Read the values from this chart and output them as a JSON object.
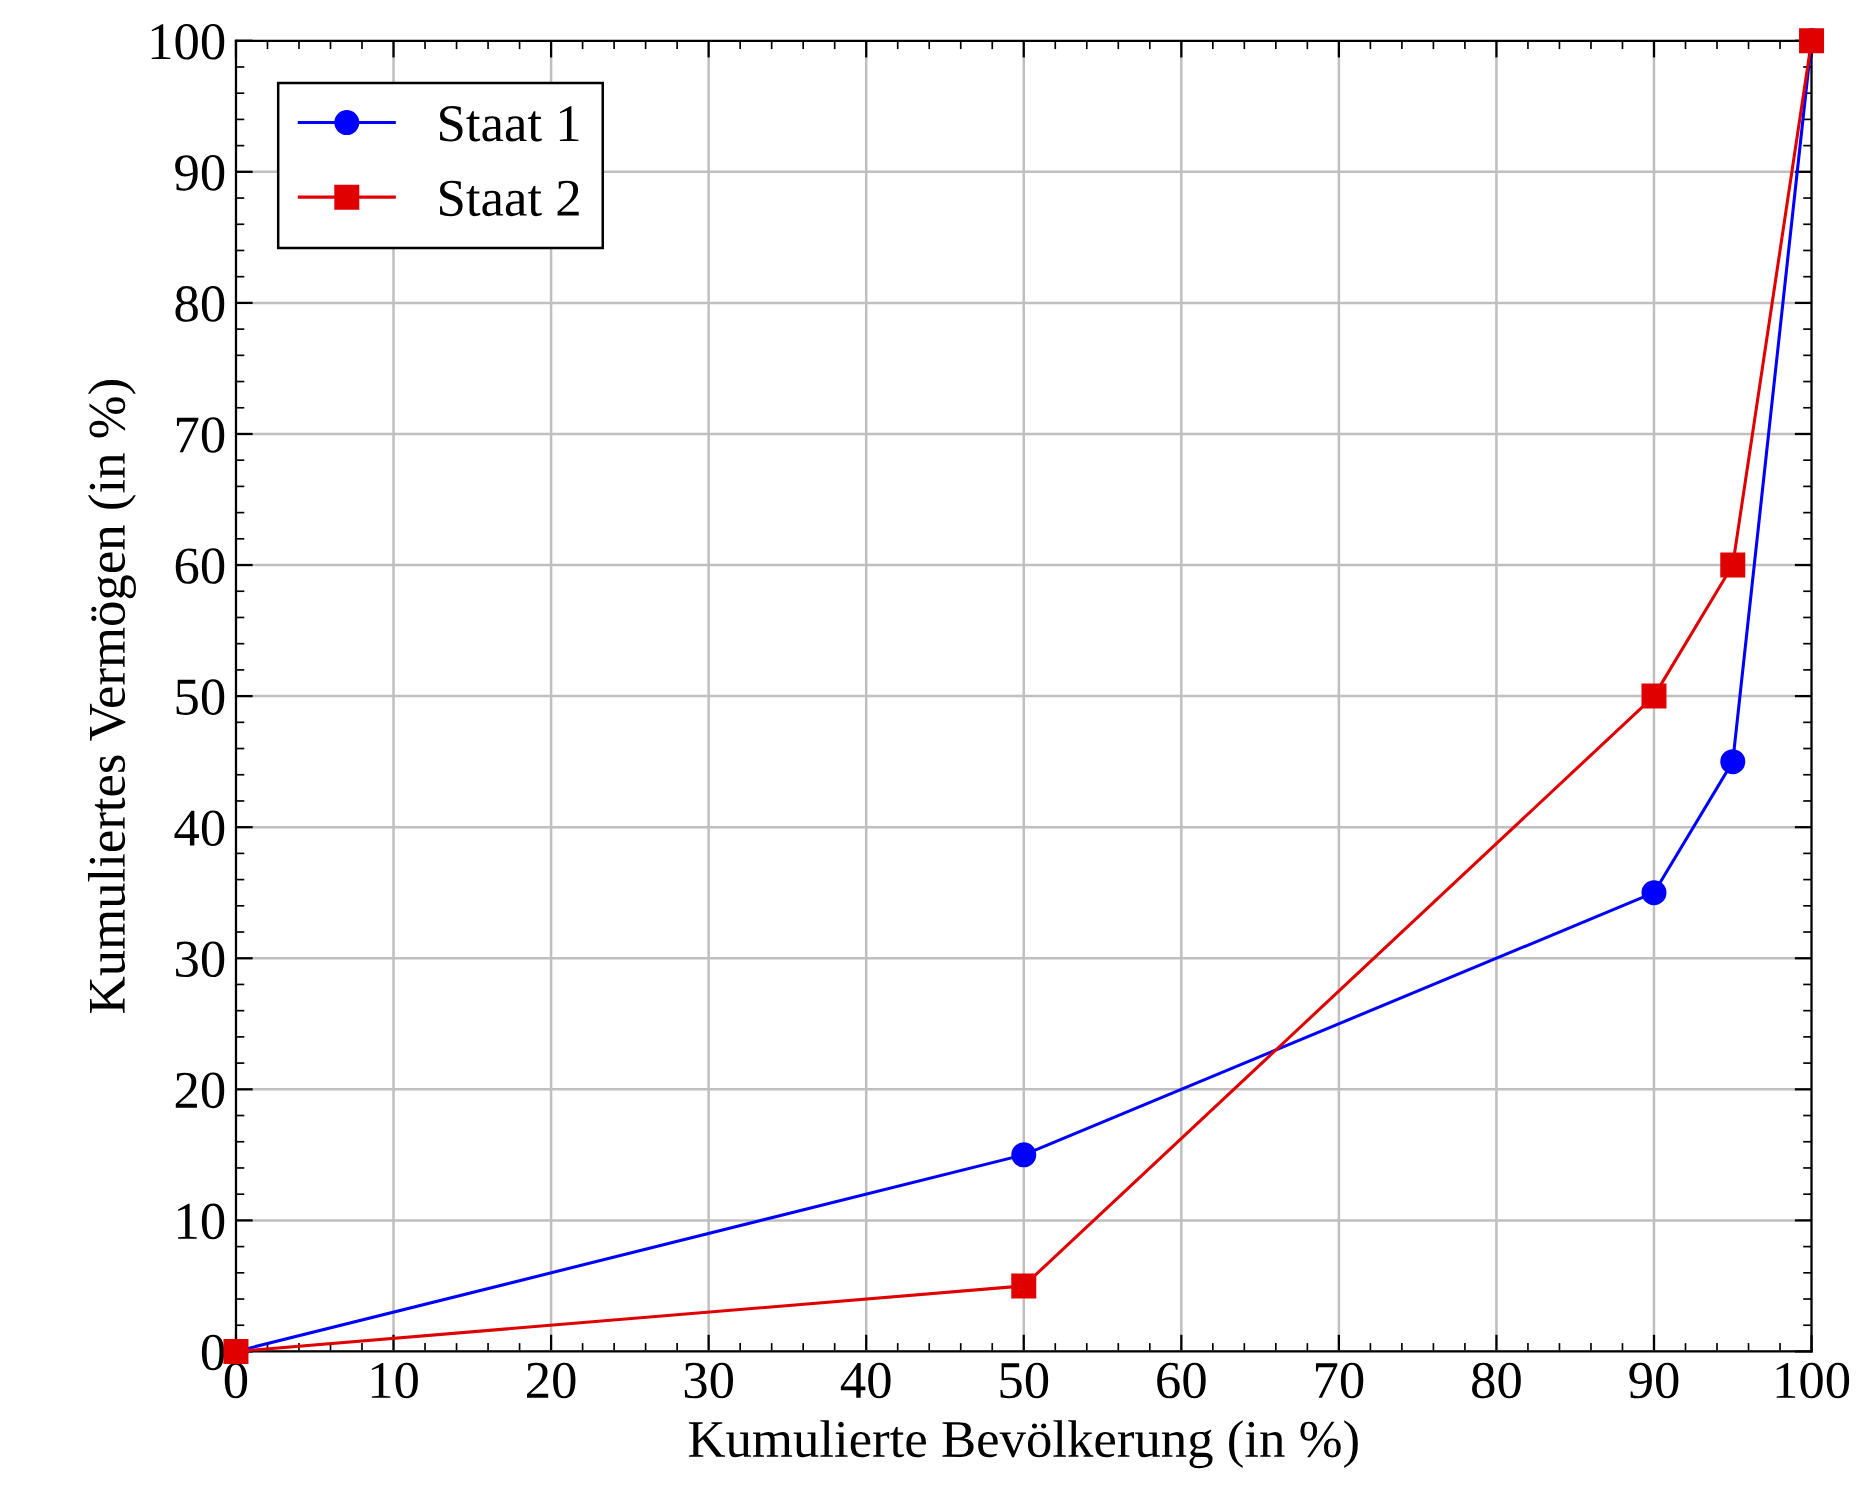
{
  "chart_data": {
    "type": "line",
    "xlabel": "Kumulierte Bevölkerung (in %)",
    "ylabel": "Kumuliertes Vermögen (in %)",
    "x": [
      0,
      50,
      90,
      95,
      100
    ],
    "series": [
      {
        "name": "Staat 1",
        "color": "#0000ff",
        "marker": "circle",
        "values": [
          0,
          15,
          35,
          45,
          100
        ]
      },
      {
        "name": "Staat 2",
        "color": "#e00000",
        "marker": "square",
        "values": [
          0,
          5,
          50,
          60,
          100
        ]
      }
    ],
    "xlim": [
      0,
      100
    ],
    "ylim": [
      0,
      100
    ],
    "xticks": [
      0,
      10,
      20,
      30,
      40,
      50,
      60,
      70,
      80,
      90,
      100
    ],
    "yticks": [
      0,
      10,
      20,
      30,
      40,
      50,
      60,
      70,
      80,
      90,
      100
    ],
    "grid": true,
    "legend": "top left",
    "line_style": "solid"
  }
}
